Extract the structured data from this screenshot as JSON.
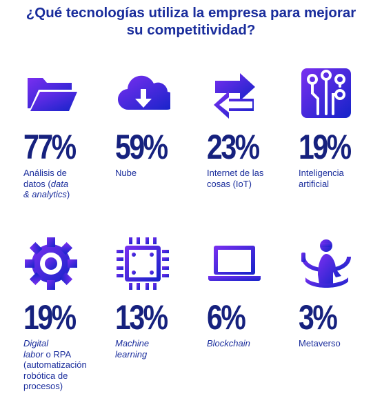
{
  "title_line1": "¿Qué tecnologías utiliza la empresa para mejorar",
  "title_line2": "su competitividad?",
  "colors": {
    "gradient_start": "#7a2ff0",
    "gradient_end": "#1423c8",
    "text": "#1a2d9c",
    "value": "#16217e"
  },
  "chart_data": {
    "type": "pictogram",
    "title": "¿Qué tecnologías utiliza la empresa para mejorar su competitividad?",
    "unit": "%",
    "categories": [
      "Análisis de datos (data & analytics)",
      "Nube",
      "Internet de las cosas (IoT)",
      "Inteligencia artificial",
      "Digital labor o RPA (automatización robótica de procesos)",
      "Machine learning",
      "Blockchain",
      "Metaverso"
    ],
    "values": [
      77,
      59,
      23,
      19,
      19,
      13,
      6,
      3
    ],
    "value_labels": [
      "77%",
      "59%",
      "23%",
      "19%",
      "19%",
      "13%",
      "6%",
      "3%"
    ],
    "icons": [
      "folder-icon",
      "cloud-download-icon",
      "arrows-exchange-icon",
      "ai-circuit-icon",
      "gear-icon",
      "chip-icon",
      "laptop-icon",
      "vr-user-icon"
    ],
    "label_parts": [
      [
        {
          "t": "Análisis de",
          "i": false
        },
        {
          "br": true
        },
        {
          "t": "datos (",
          "i": false
        },
        {
          "t": "data",
          "i": true
        },
        {
          "br": true
        },
        {
          "t": "& analytics",
          "i": true
        },
        {
          "t": ")",
          "i": false
        }
      ],
      [
        {
          "t": "Nube",
          "i": false
        }
      ],
      [
        {
          "t": "Internet de las",
          "i": false
        },
        {
          "br": true
        },
        {
          "t": "cosas (IoT)",
          "i": false
        }
      ],
      [
        {
          "t": "Inteligencia",
          "i": false
        },
        {
          "br": true
        },
        {
          "t": "artificial",
          "i": false
        }
      ],
      [
        {
          "t": "Digital",
          "i": true
        },
        {
          "br": true
        },
        {
          "t": "labor",
          "i": true
        },
        {
          "t": " o RPA",
          "i": false
        },
        {
          "br": true
        },
        {
          "t": "(automatización",
          "i": false
        },
        {
          "br": true
        },
        {
          "t": "robótica de",
          "i": false
        },
        {
          "br": true
        },
        {
          "t": "procesos)",
          "i": false
        }
      ],
      [
        {
          "t": "Machine",
          "i": true
        },
        {
          "br": true
        },
        {
          "t": "learning",
          "i": true
        }
      ],
      [
        {
          "t": "Blockchain",
          "i": true
        }
      ],
      [
        {
          "t": "Metaverso",
          "i": false
        }
      ]
    ]
  }
}
